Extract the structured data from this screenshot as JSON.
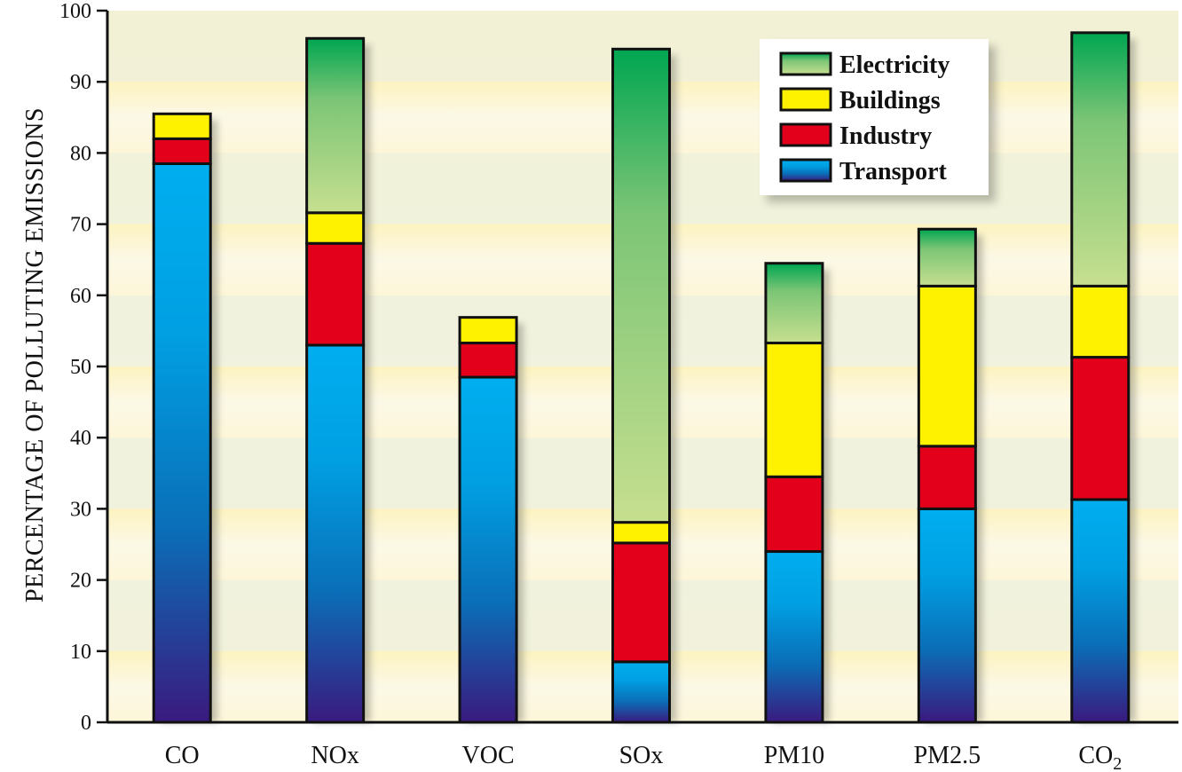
{
  "chart_data": {
    "type": "bar",
    "stacked": true,
    "title": "",
    "xlabel": "",
    "ylabel": "PERCENTAGE OF POLLUTING EMISSIONS",
    "ylim": [
      0,
      100
    ],
    "yticks": [
      0,
      10,
      20,
      30,
      40,
      50,
      60,
      70,
      80,
      90,
      100
    ],
    "categories": [
      "CO",
      "NOx",
      "VOC",
      "SOx",
      "PM10",
      "PM2.5",
      "CO2"
    ],
    "category_labels": [
      {
        "main": "CO",
        "sub": ""
      },
      {
        "main": "NOx",
        "sub": ""
      },
      {
        "main": "VOC",
        "sub": ""
      },
      {
        "main": "SOx",
        "sub": ""
      },
      {
        "main": "PM10",
        "sub": ""
      },
      {
        "main": "PM2.5",
        "sub": ""
      },
      {
        "main": "CO",
        "sub": "2"
      }
    ],
    "series": [
      {
        "name": "Transport",
        "values": [
          78.5,
          53.0,
          48.5,
          8.5,
          24.0,
          30.0,
          31.3
        ]
      },
      {
        "name": "Industry",
        "values": [
          3.5,
          14.3,
          4.8,
          16.7,
          10.5,
          8.8,
          20.0
        ]
      },
      {
        "name": "Buildings",
        "values": [
          3.5,
          4.3,
          3.6,
          2.9,
          18.8,
          22.5,
          10.0
        ]
      },
      {
        "name": "Electricity",
        "values": [
          0,
          24.5,
          0,
          66.5,
          11.2,
          8.0,
          35.6
        ]
      }
    ],
    "legend": {
      "position": "top-right",
      "order": [
        "Electricity",
        "Buildings",
        "Industry",
        "Transport"
      ]
    },
    "grid": "horizontal bands",
    "colors": {
      "Transport": [
        "#00aeef",
        "#0a6fb8",
        "#3a1a7e"
      ],
      "Industry": "#e2001a",
      "Buildings": "#fff200",
      "Electricity": [
        "#00a651",
        "#c6df8f"
      ],
      "band_light": "#fdf9e0",
      "band_dark": "#eef0dc",
      "plot_top": "#fdf4c8"
    }
  }
}
